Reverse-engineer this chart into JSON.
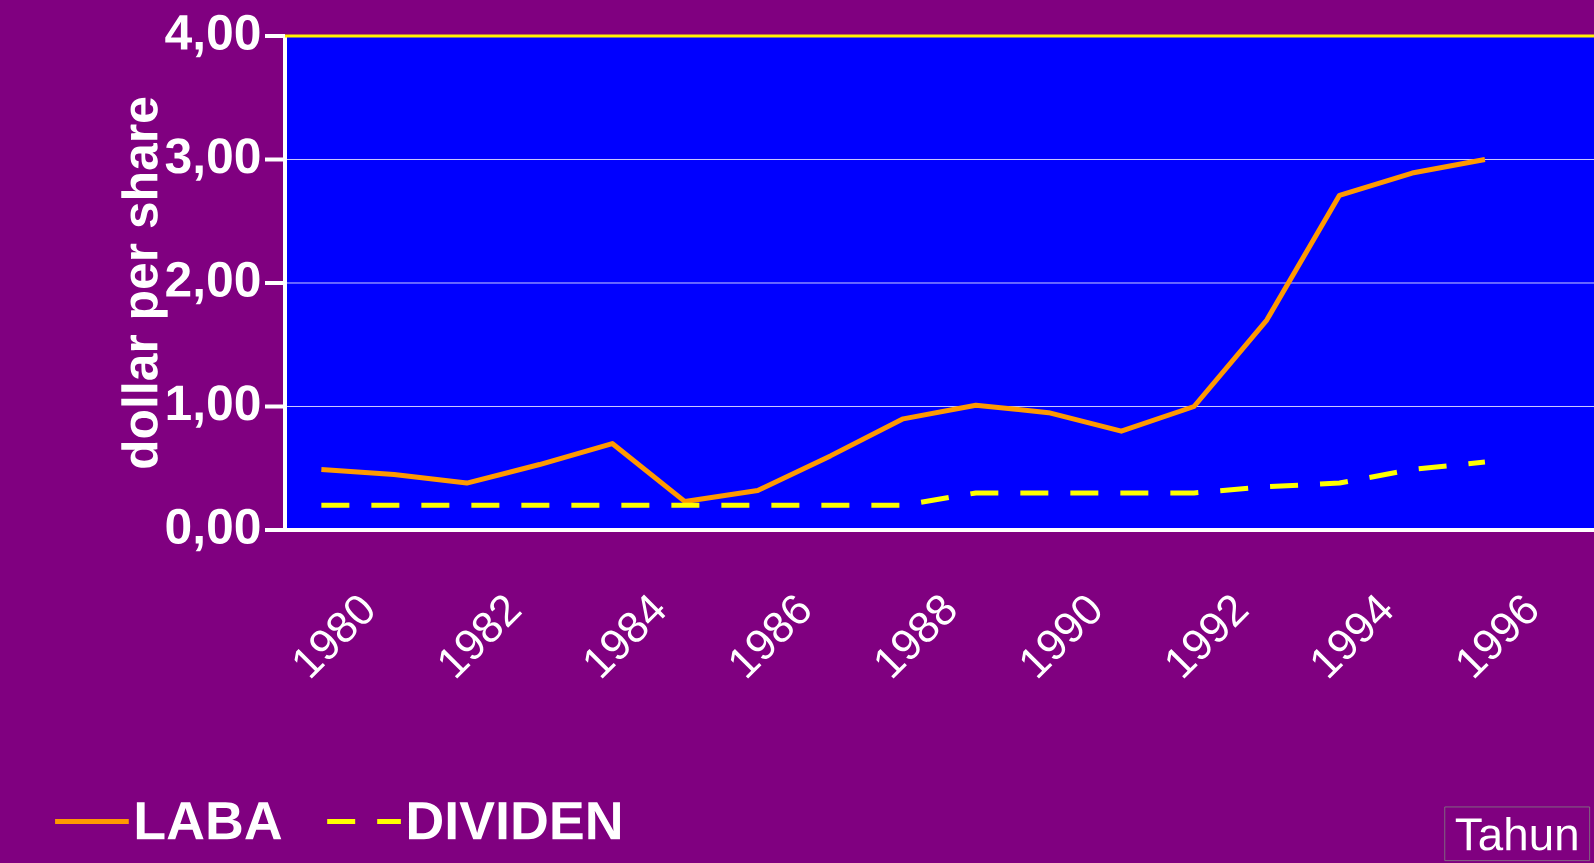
{
  "chart_data": {
    "type": "line",
    "ylabel": "dollar per share",
    "xlabel": "Tahun",
    "categories": [
      "1980",
      null,
      "1982",
      null,
      "1984",
      null,
      "1986",
      null,
      "1988",
      null,
      "1990",
      null,
      "1992",
      null,
      "1994",
      null,
      "1996",
      null
    ],
    "series": [
      {
        "name": "LABA",
        "color": "#ff9900",
        "line_style": "solid",
        "values": [
          0.49,
          0.45,
          0.38,
          0.53,
          0.7,
          0.23,
          0.32,
          0.6,
          0.9,
          1.01,
          0.95,
          0.8,
          1.0,
          1.7,
          2.71,
          2.89,
          3.0,
          null
        ]
      },
      {
        "name": "DIVIDEN",
        "color": "#ffff00",
        "line_style": "dashed",
        "values": [
          0.2,
          0.2,
          0.2,
          0.2,
          0.2,
          0.2,
          0.2,
          0.2,
          0.2,
          0.3,
          0.3,
          0.3,
          0.3,
          0.35,
          0.38,
          0.49,
          0.55,
          null
        ]
      }
    ],
    "ylim": [
      0,
      4
    ],
    "yticks": [
      {
        "value": 0,
        "label": "0,00"
      },
      {
        "value": 1,
        "label": "1,00"
      },
      {
        "value": 2,
        "label": "2,00"
      },
      {
        "value": 3,
        "label": "3,00"
      },
      {
        "value": 4,
        "label": "4,00"
      }
    ],
    "grid": "y",
    "legend": "bottom left",
    "marker": "none"
  }
}
